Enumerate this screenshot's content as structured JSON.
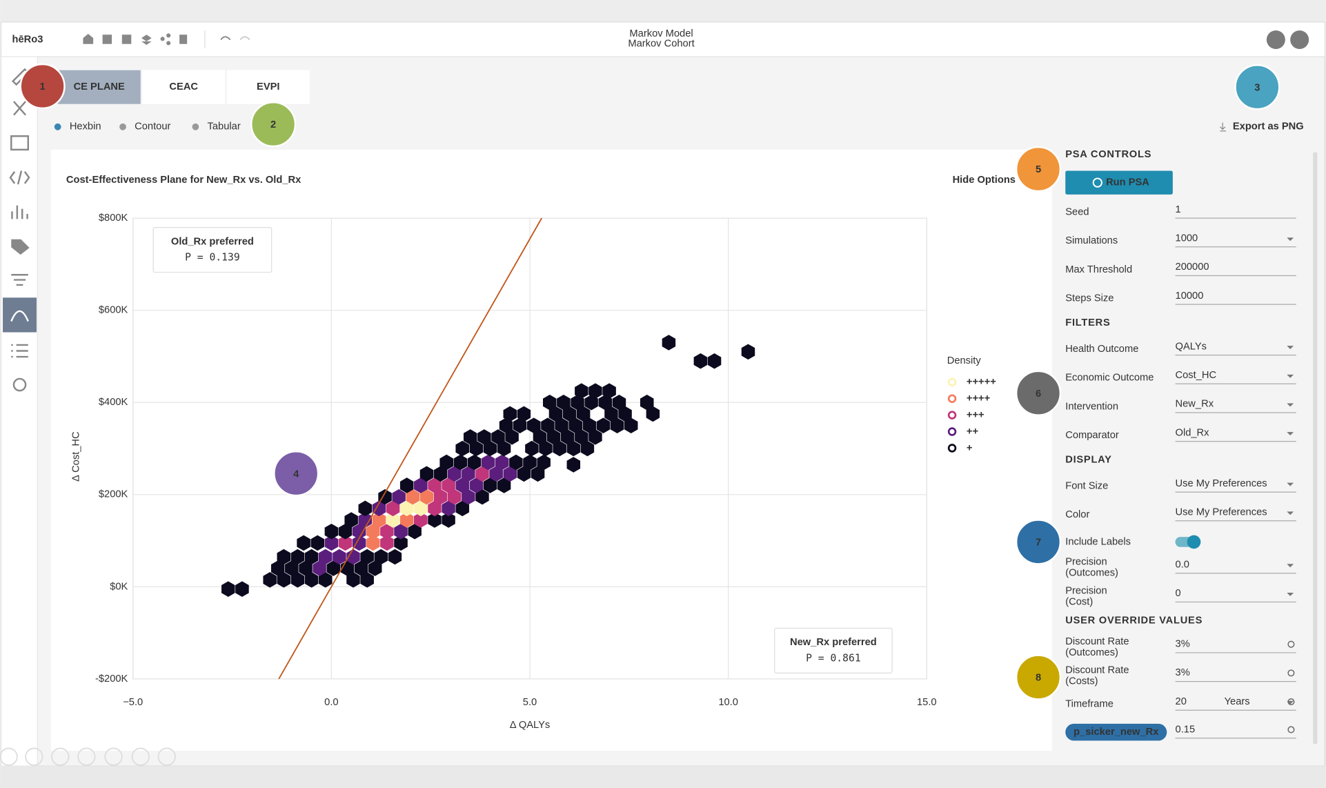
{
  "app": {
    "logo": "hēRo3",
    "model_title": "Markov Model",
    "model_subtitle": "Markov Cohort"
  },
  "tabs": [
    "CE PLANE",
    "CEAC",
    "EVPI"
  ],
  "view_modes": [
    "Hexbin",
    "Contour",
    "Tabular"
  ],
  "export": "Export as PNG",
  "hide_options": "Hide Options",
  "callouts": [
    "1",
    "2",
    "3",
    "4",
    "5",
    "6",
    "7",
    "8"
  ],
  "chart_data": {
    "type": "hexbin",
    "title": "Cost-Effectiveness Plane for New_Rx vs. Old_Rx",
    "x_label": "Δ QALYs",
    "y_label": "Δ Cost_HC",
    "xlim": [
      -5,
      15
    ],
    "ylim": [
      -200000,
      800000
    ],
    "xticks": [
      {
        "value": -5,
        "label": "−5.0"
      },
      {
        "value": 0,
        "label": "0.0"
      },
      {
        "value": 5,
        "label": "5.0"
      },
      {
        "value": 10,
        "label": "10.0"
      },
      {
        "value": 15,
        "label": "15.0"
      }
    ],
    "yticks": [
      {
        "value": -200000,
        "label": "-$200K"
      },
      {
        "value": 0,
        "label": "$0K"
      },
      {
        "value": 200000,
        "label": "$200K"
      },
      {
        "value": 400000,
        "label": "$400K"
      },
      {
        "value": 600000,
        "label": "$600K"
      },
      {
        "value": 800000,
        "label": "$800K"
      }
    ],
    "grid": true,
    "wtp": 151000,
    "wtp_color": "#c0571a",
    "annotations": [
      {
        "label": "Old_Rx preferred",
        "prob": "P = 0.139"
      },
      {
        "label": "New_Rx preferred",
        "prob": "P = 0.861"
      }
    ],
    "legend_title": "Density",
    "legend": [
      {
        "label": "+++++",
        "color": "#fcf3b2"
      },
      {
        "label": "++++",
        "color": "#f47a5c"
      },
      {
        "label": "+++",
        "color": "#c1357a"
      },
      {
        "label": "++",
        "color": "#5b1e7c"
      },
      {
        "label": "+",
        "color": "#0c0a1e"
      }
    ],
    "hexes": {
      "x": [
        -2.6,
        -2.25,
        -1.55,
        -1.2,
        -0.85,
        -0.5,
        -0.15,
        0.55,
        0.9,
        -1.35,
        -1.0,
        -0.65,
        -0.3,
        0.05,
        0.4,
        0.75,
        1.1,
        -1.2,
        -0.85,
        -0.5,
        -0.15,
        0.2,
        0.55,
        0.9,
        1.25,
        1.6,
        -0.7,
        -0.35,
        0,
        0.35,
        0.7,
        1.05,
        1.4,
        1.75,
        0,
        0.35,
        0.7,
        1.05,
        1.4,
        1.75,
        2.1,
        0.5,
        0.85,
        1.2,
        1.55,
        1.9,
        2.25,
        2.6,
        2.95,
        0.85,
        1.2,
        1.55,
        1.9,
        2.25,
        2.6,
        2.95,
        3.3,
        1.35,
        1.7,
        2.05,
        2.4,
        2.75,
        3.1,
        3.45,
        3.8,
        1.9,
        2.25,
        2.6,
        2.95,
        3.3,
        3.65,
        4.0,
        4.35,
        2.4,
        2.75,
        3.1,
        3.45,
        3.8,
        4.15,
        4.5,
        4.85,
        5.2,
        6.1,
        2.9,
        3.25,
        3.6,
        3.95,
        4.3,
        4.65,
        5.0,
        5.35,
        3.3,
        3.65,
        4.0,
        4.35,
        5.05,
        5.4,
        5.75,
        6.1,
        6.45,
        3.5,
        3.85,
        4.2,
        4.55,
        5.25,
        5.6,
        5.95,
        6.3,
        6.65,
        4.4,
        4.75,
        5.1,
        5.45,
        5.8,
        6.15,
        6.5,
        6.85,
        7.2,
        7.55,
        4.5,
        4.85,
        5.65,
        6.0,
        6.35,
        7.05,
        7.4,
        8.1,
        5.5,
        5.85,
        6.2,
        6.55,
        6.9,
        7.25,
        7.95,
        6.3,
        6.65,
        7.0,
        8.5,
        9.3,
        9.65,
        10.5
      ],
      "y": [
        -5000,
        -5000,
        15000,
        15000,
        15000,
        15000,
        15000,
        15000,
        15000,
        40000,
        40000,
        40000,
        40000,
        40000,
        40000,
        40000,
        40000,
        65000,
        65000,
        65000,
        65000,
        65000,
        65000,
        65000,
        65000,
        65000,
        95000,
        95000,
        95000,
        95000,
        95000,
        95000,
        95000,
        95000,
        120000,
        120000,
        120000,
        120000,
        120000,
        120000,
        120000,
        145000,
        145000,
        145000,
        145000,
        145000,
        145000,
        145000,
        145000,
        170000,
        170000,
        170000,
        170000,
        170000,
        170000,
        170000,
        170000,
        195000,
        195000,
        195000,
        195000,
        195000,
        195000,
        195000,
        195000,
        220000,
        220000,
        220000,
        220000,
        220000,
        220000,
        220000,
        220000,
        245000,
        245000,
        245000,
        245000,
        245000,
        245000,
        245000,
        245000,
        245000,
        265000,
        270000,
        270000,
        270000,
        270000,
        270000,
        270000,
        270000,
        270000,
        300000,
        300000,
        300000,
        300000,
        300000,
        300000,
        300000,
        300000,
        300000,
        325000,
        325000,
        325000,
        325000,
        325000,
        325000,
        325000,
        325000,
        325000,
        350000,
        350000,
        350000,
        350000,
        350000,
        350000,
        350000,
        350000,
        350000,
        350000,
        375000,
        375000,
        375000,
        375000,
        375000,
        375000,
        375000,
        375000,
        400000,
        400000,
        400000,
        400000,
        400000,
        400000,
        400000,
        425000,
        425000,
        425000,
        530000,
        490000,
        490000,
        510000
      ],
      "density": [
        1,
        1,
        1,
        1,
        1,
        1,
        1,
        1,
        1,
        1,
        1,
        1,
        2,
        1,
        1,
        1,
        1,
        1,
        1,
        1,
        2,
        2,
        2,
        1,
        1,
        1,
        1,
        1,
        2,
        3,
        2,
        4,
        3,
        1,
        1,
        1,
        2,
        4,
        3,
        2,
        1,
        1,
        2,
        4,
        5,
        4,
        3,
        1,
        1,
        1,
        2,
        3,
        5,
        5,
        3,
        2,
        1,
        1,
        2,
        4,
        4,
        3,
        3,
        2,
        1,
        1,
        2,
        3,
        3,
        2,
        2,
        1,
        1,
        1,
        1,
        2,
        2,
        3,
        2,
        2,
        1,
        1,
        1,
        1,
        1,
        1,
        2,
        2,
        1,
        1,
        1,
        1,
        1,
        1,
        1,
        1,
        1,
        1,
        1,
        1,
        1,
        1,
        1,
        1,
        1,
        1,
        1,
        1,
        1,
        1,
        1,
        1,
        1,
        1,
        1,
        1,
        1,
        1,
        1,
        1,
        1,
        1,
        1,
        1,
        1,
        1,
        1,
        1,
        1,
        1,
        1,
        1,
        1,
        1,
        1,
        1,
        1,
        1,
        1,
        1,
        1
      ]
    }
  },
  "psa_controls": {
    "title": "PSA CONTROLS",
    "button": "Run PSA",
    "fields": [
      {
        "label": "Seed",
        "value": "1"
      },
      {
        "label": "Simulations",
        "value": "1000"
      },
      {
        "label": "Max Threshold",
        "value": "200000"
      },
      {
        "label": "Steps Size",
        "value": "10000"
      }
    ]
  },
  "filters": {
    "title": "FILTERS",
    "fields": [
      {
        "label": "Health Outcome",
        "value": "QALYs"
      },
      {
        "label": "Economic Outcome",
        "value": "Cost_HC"
      },
      {
        "label": "Intervention",
        "value": "New_Rx"
      },
      {
        "label": "Comparator",
        "value": "Old_Rx"
      }
    ]
  },
  "display": {
    "title": "DISPLAY",
    "fields": [
      {
        "label": "Font Size",
        "value": "Use My Preferences"
      },
      {
        "label": "Color",
        "value": "Use My Preferences"
      },
      {
        "label": "Include Labels"
      },
      {
        "label": "Precision",
        "sublabel": "(Outcomes)",
        "value": "0.0"
      },
      {
        "label": "Precision",
        "sublabel": "(Cost)",
        "value": "0"
      }
    ]
  },
  "overrides": {
    "title": "USER OVERRIDE VALUES",
    "fields": [
      {
        "label": "Discount Rate",
        "sublabel": "(Outcomes)",
        "value": "3%"
      },
      {
        "label": "Discount Rate",
        "sublabel": "(Costs)",
        "value": "3%"
      },
      {
        "label": "Timeframe",
        "value": "20",
        "unit": "Years"
      },
      {
        "chip": "p_sicker_new_Rx",
        "value": "0.15"
      }
    ]
  }
}
